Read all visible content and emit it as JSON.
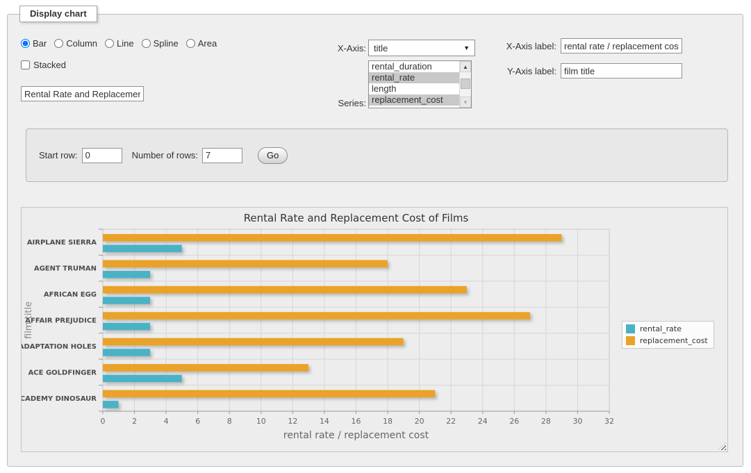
{
  "fieldset": {
    "legend": "Display chart"
  },
  "chart_types": [
    {
      "label": "Bar",
      "selected": true
    },
    {
      "label": "Column",
      "selected": false
    },
    {
      "label": "Line",
      "selected": false
    },
    {
      "label": "Spline",
      "selected": false
    },
    {
      "label": "Area",
      "selected": false
    }
  ],
  "stacked": {
    "label": "Stacked",
    "checked": false
  },
  "chart_title_input": {
    "value": "Rental Rate and Replacement Cost of Films"
  },
  "x_axis": {
    "label": "X-Axis:",
    "selected": "title"
  },
  "series_select": {
    "label": "Series:",
    "options": [
      {
        "label": "rental_duration",
        "selected": false
      },
      {
        "label": "rental_rate",
        "selected": true
      },
      {
        "label": "length",
        "selected": false
      },
      {
        "label": "replacement_cost",
        "selected": true
      }
    ]
  },
  "x_axis_label_field": {
    "label": "X-Axis label:",
    "value": "rental rate / replacement cost"
  },
  "y_axis_label_field": {
    "label": "Y-Axis label:",
    "value": "film title"
  },
  "row_controls": {
    "start_row_label": "Start row:",
    "start_row_value": "0",
    "num_rows_label": "Number of rows:",
    "num_rows_value": "7",
    "go_label": "Go"
  },
  "icons": {
    "dropdown_arrow": "▼",
    "scroll_up": "▲",
    "scroll_down": "▼"
  },
  "chart_data": {
    "type": "bar",
    "orientation": "horizontal",
    "title": "Rental Rate and Replacement Cost of Films",
    "xlabel": "rental rate / replacement cost",
    "ylabel": "film title",
    "categories": [
      "AIRPLANE SIERRA",
      "AGENT TRUMAN",
      "AFRICAN EGG",
      "AFFAIR PREJUDICE",
      "ADAPTATION HOLES",
      "ACE GOLDFINGER",
      "ACADEMY DINOSAUR"
    ],
    "series": [
      {
        "name": "rental_rate",
        "color": "#4bb2c5",
        "values": [
          4.99,
          2.99,
          2.99,
          2.99,
          2.99,
          4.99,
          0.99
        ]
      },
      {
        "name": "replacement_cost",
        "color": "#eaa228",
        "values": [
          28.99,
          17.99,
          22.99,
          26.99,
          18.99,
          12.99,
          20.99
        ]
      }
    ],
    "xlim": [
      0,
      32
    ],
    "xticks": [
      0,
      2,
      4,
      6,
      8,
      10,
      12,
      14,
      16,
      18,
      20,
      22,
      24,
      26,
      28,
      30,
      32
    ],
    "grid": true,
    "legend_position": "right"
  }
}
